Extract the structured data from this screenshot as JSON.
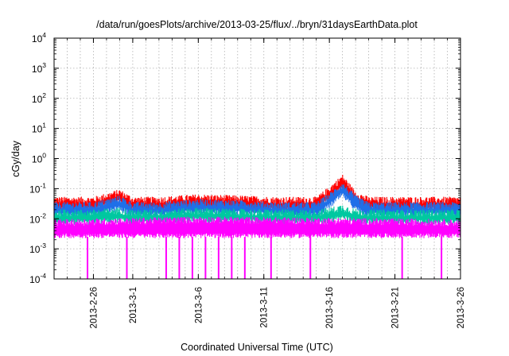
{
  "chart_data": {
    "type": "line",
    "title": "/data/run/goesPlots/archive/2013-03-25/flux/../bryn/31daysEarthData.plot",
    "xlabel": "Coordinated Universal Time (UTC)",
    "ylabel": "cGy/day",
    "yscale": "log",
    "ylim": [
      0.0001,
      10000
    ],
    "xlim": [
      "2013-02-23",
      "2013-03-26"
    ],
    "grid": true,
    "y_ticks": [
      {
        "base": "10",
        "exp": "-4"
      },
      {
        "base": "10",
        "exp": "-3"
      },
      {
        "base": "10",
        "exp": "-2"
      },
      {
        "base": "10",
        "exp": "-1"
      },
      {
        "base": "10",
        "exp": "0"
      },
      {
        "base": "10",
        "exp": "1"
      },
      {
        "base": "10",
        "exp": "2"
      },
      {
        "base": "10",
        "exp": "3"
      },
      {
        "base": "10",
        "exp": "4"
      }
    ],
    "x_ticks": [
      "2013-2-26",
      "2013-3-1",
      "2013-3-6",
      "2013-3-11",
      "2013-3-16",
      "2013-3-21",
      "2013-3-26"
    ],
    "series": [
      {
        "color": "#ff0000",
        "x": [
          "2013-02-23",
          "2013-02-26",
          "2013-02-28",
          "2013-03-01",
          "2013-03-03",
          "2013-03-06",
          "2013-03-09",
          "2013-03-12",
          "2013-03-15",
          "2013-03-16",
          "2013-03-17",
          "2013-03-18",
          "2013-03-19",
          "2013-03-21",
          "2013-03-24",
          "2013-03-26"
        ],
        "values": [
          0.045,
          0.045,
          0.08,
          0.045,
          0.045,
          0.055,
          0.05,
          0.045,
          0.045,
          0.1,
          0.25,
          0.07,
          0.045,
          0.045,
          0.045,
          0.045
        ]
      },
      {
        "color": "#1f6fe8",
        "x": [
          "2013-02-23",
          "2013-02-26",
          "2013-02-28",
          "2013-03-01",
          "2013-03-03",
          "2013-03-06",
          "2013-03-09",
          "2013-03-12",
          "2013-03-15",
          "2013-03-16",
          "2013-03-17",
          "2013-03-18",
          "2013-03-19",
          "2013-03-21",
          "2013-03-24",
          "2013-03-26"
        ],
        "values": [
          0.03,
          0.03,
          0.05,
          0.03,
          0.03,
          0.038,
          0.035,
          0.03,
          0.03,
          0.06,
          0.14,
          0.05,
          0.03,
          0.03,
          0.03,
          0.03
        ]
      },
      {
        "color": "#00c8a0",
        "x": [
          "2013-02-23",
          "2013-02-26",
          "2013-02-28",
          "2013-03-01",
          "2013-03-03",
          "2013-03-06",
          "2013-03-09",
          "2013-03-12",
          "2013-03-15",
          "2013-03-16",
          "2013-03-17",
          "2013-03-18",
          "2013-03-19",
          "2013-03-21",
          "2013-03-24",
          "2013-03-26"
        ],
        "values": [
          0.017,
          0.017,
          0.02,
          0.017,
          0.017,
          0.02,
          0.018,
          0.017,
          0.017,
          0.02,
          0.025,
          0.018,
          0.017,
          0.017,
          0.017,
          0.017
        ]
      },
      {
        "color": "#ff00ff",
        "x": [
          "2013-02-23",
          "2013-03-06",
          "2013-03-17",
          "2013-03-26"
        ],
        "values": [
          0.008,
          0.01,
          0.009,
          0.008
        ],
        "lower": 0.0025,
        "dropouts": [
          "2013-02-25",
          "2013-02-28",
          "2013-03-03",
          "2013-03-04",
          "2013-03-05",
          "2013-03-06",
          "2013-03-07",
          "2013-03-08",
          "2013-03-09",
          "2013-03-11",
          "2013-03-14",
          "2013-03-21",
          "2013-03-24"
        ]
      }
    ]
  }
}
